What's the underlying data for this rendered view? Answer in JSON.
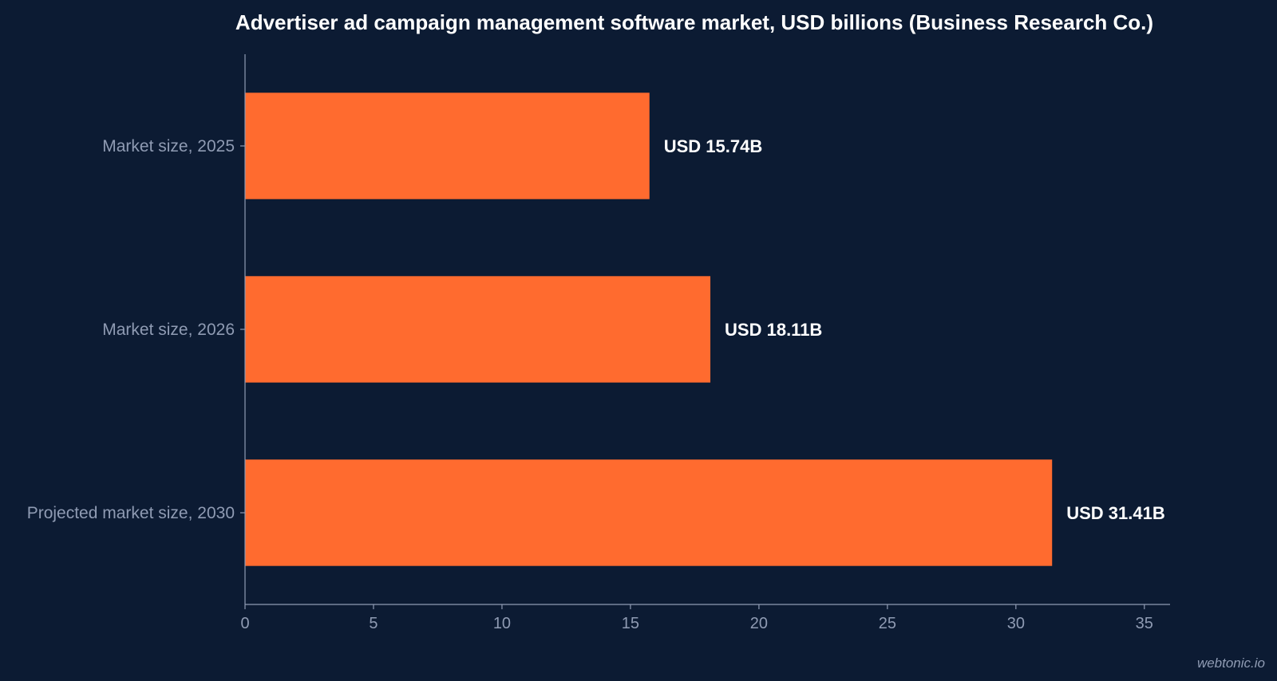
{
  "chart_data": {
    "type": "bar",
    "orientation": "horizontal",
    "title": "Advertiser ad campaign management software market, USD billions (Business Research Co.)",
    "categories": [
      "Market size, 2025",
      "Market size, 2026",
      "Projected market size, 2030"
    ],
    "values": [
      15.74,
      18.11,
      31.41
    ],
    "data_labels": [
      "USD 15.74B",
      "USD 18.11B",
      "USD 31.41B"
    ],
    "xlim": [
      0,
      36
    ],
    "x_ticks": [
      0,
      5,
      10,
      15,
      20,
      25,
      30,
      35
    ],
    "xlabel": "",
    "ylabel": "",
    "grid": false,
    "legend": "none"
  },
  "watermark": "webtonic.io",
  "colors": {
    "background": "#0c1b33",
    "bar": "#ff6b2f",
    "axis": "#8f9bb3",
    "title": "#ffffff",
    "data_label": "#ffffff",
    "tick_label": "#8f9bb3"
  }
}
